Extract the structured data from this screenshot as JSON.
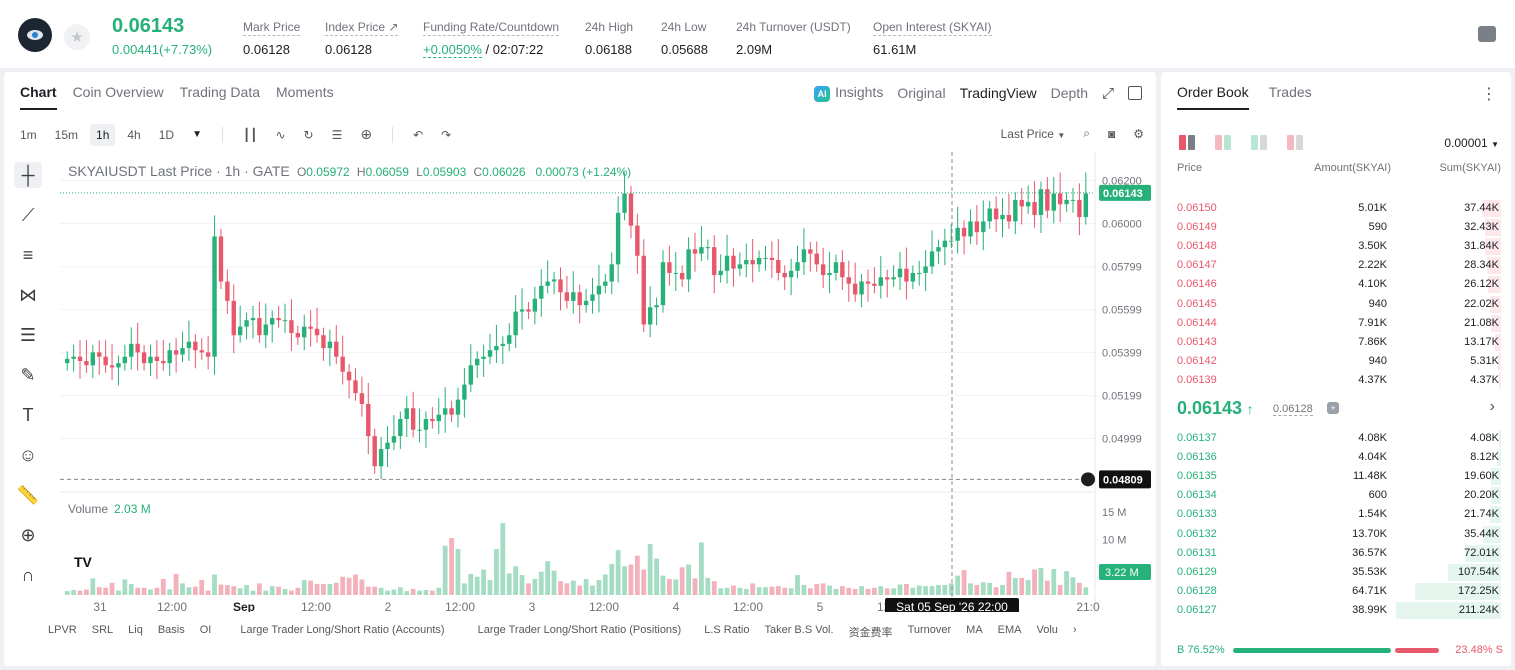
{
  "header": {
    "last_price": "0.06143",
    "change": "0.00441(+7.73%)",
    "stats": [
      {
        "label": "Mark Price",
        "value": "0.06128"
      },
      {
        "label": "Index Price ↗",
        "value": "0.06128"
      },
      {
        "label": "Funding Rate/Countdown",
        "value_green": "+0.0050%",
        "value": " / 02:07:22"
      },
      {
        "label": "24h High",
        "value": "0.06188"
      },
      {
        "label": "24h Low",
        "value": "0.05688"
      },
      {
        "label": "24h Turnover (USDT)",
        "value": "2.09M"
      },
      {
        "label": "Open Interest (SKYAI)",
        "value": "61.61M"
      }
    ]
  },
  "chart_tabs": [
    "Chart",
    "Coin Overview",
    "Trading Data",
    "Moments"
  ],
  "view_tabs": [
    "Insights",
    "Original",
    "TradingView",
    "Depth"
  ],
  "ai_badge": "AI",
  "intervals": [
    "1m",
    "15m",
    "1h",
    "4h",
    "1D"
  ],
  "price_type": "Last Price",
  "symbol_line": {
    "title": "SKYAIUSDT Last Price · 1h · GATE",
    "o": "0.05972",
    "h": "0.06059",
    "l": "0.05903",
    "c": "0.06026",
    "chg": "0.00073 (+1.24%)"
  },
  "volume": {
    "label": "Volume",
    "value": "2.03 M",
    "current": "3.22 M"
  },
  "chart_data": {
    "type": "candlestick",
    "symbol": "SKYAIUSDT",
    "interval": "1h",
    "y_ticks": [
      "0.06200",
      "0.06000",
      "0.05799",
      "0.05599",
      "0.05399",
      "0.05199",
      "0.04999"
    ],
    "vol_ticks": [
      "15 M",
      "10 M",
      "5 M"
    ],
    "x_ticks": [
      "31",
      "12:00",
      "Sep",
      "12:00",
      "2",
      "12:00",
      "3",
      "12:00",
      "4",
      "12:00",
      "5",
      "12:00",
      "21:0"
    ],
    "last_price_tag": "0.06143",
    "crosshair_price": "0.04809",
    "crosshair_time": "Sat 05 Sep '26   22:00",
    "ylim": [
      0.0475,
      0.0624
    ],
    "close": [
      0.0537,
      0.0538,
      0.0536,
      0.0534,
      0.054,
      0.0538,
      0.0534,
      0.0533,
      0.0535,
      0.0538,
      0.0544,
      0.054,
      0.0535,
      0.0538,
      0.0536,
      0.0535,
      0.0541,
      0.0539,
      0.0542,
      0.0545,
      0.0541,
      0.054,
      0.0538,
      0.0594,
      0.0573,
      0.0564,
      0.0548,
      0.0552,
      0.0555,
      0.0556,
      0.0548,
      0.0553,
      0.0556,
      0.0555,
      0.0555,
      0.0549,
      0.0547,
      0.0552,
      0.0551,
      0.0548,
      0.0542,
      0.0545,
      0.0538,
      0.0531,
      0.0527,
      0.0521,
      0.0516,
      0.0501,
      0.0487,
      0.0495,
      0.0498,
      0.0501,
      0.0509,
      0.0514,
      0.0504,
      0.0504,
      0.0509,
      0.0508,
      0.0511,
      0.0514,
      0.0511,
      0.0518,
      0.0525,
      0.0534,
      0.0537,
      0.0538,
      0.0541,
      0.0543,
      0.0544,
      0.0548,
      0.0559,
      0.056,
      0.0559,
      0.0565,
      0.0571,
      0.0573,
      0.0574,
      0.0568,
      0.0564,
      0.0568,
      0.0562,
      0.0564,
      0.0567,
      0.0571,
      0.0573,
      0.0581,
      0.0605,
      0.0614,
      0.0599,
      0.0585,
      0.0553,
      0.0561,
      0.0562,
      0.0582,
      0.0577,
      0.0577,
      0.0574,
      0.0588,
      0.0586,
      0.0589,
      0.0589,
      0.0576,
      0.0578,
      0.0585,
      0.0579,
      0.0581,
      0.0583,
      0.0581,
      0.0584,
      0.0584,
      0.0583,
      0.0577,
      0.0575,
      0.0578,
      0.0582,
      0.0588,
      0.0586,
      0.0581,
      0.0576,
      0.0577,
      0.0582,
      0.0575,
      0.0572,
      0.0567,
      0.0573,
      0.0572,
      0.0571,
      0.0575,
      0.0574,
      0.0575,
      0.0579,
      0.0573,
      0.0577,
      0.0577,
      0.058,
      0.0587,
      0.0589,
      0.0592,
      0.0592,
      0.0598,
      0.0594,
      0.0601,
      0.0596,
      0.0601,
      0.0607,
      0.0602,
      0.0604,
      0.0601,
      0.0611,
      0.0608,
      0.061,
      0.0604,
      0.0616,
      0.0606,
      0.0614,
      0.0609,
      0.0611,
      0.0611,
      0.0603,
      0.0614
    ],
    "volume_M": [
      0.7,
      0.9,
      0.8,
      1,
      3,
      1.4,
      1.3,
      2.2,
      0.8,
      2.8,
      2,
      1.3,
      1.3,
      1,
      1.3,
      2.9,
      1,
      3.8,
      2.1,
      1.4,
      1.5,
      2.7,
      0.8,
      3.7,
      1.9,
      1.8,
      1.6,
      1.2,
      1.8,
      0.8,
      2.1,
      0.8,
      1.6,
      1.5,
      1.1,
      0.8,
      1.3,
      2.7,
      2.6,
      2,
      2,
      2,
      2.2,
      3.3,
      3.1,
      3.7,
      2.8,
      1.5,
      1.5,
      1.3,
      0.8,
      1,
      1.4,
      0.7,
      1.1,
      0.8,
      0.9,
      0.8,
      1.3,
      8.9,
      10.3,
      8.3,
      2.1,
      3.8,
      3.3,
      4.6,
      2.7,
      8.3,
      13,
      3.9,
      5.2,
      3.6,
      2.1,
      2.9,
      4.2,
      6.1,
      4.4,
      2.5,
      2.1,
      2.6,
      1.7,
      2.9,
      1.7,
      2.7,
      3.7,
      5.6,
      8.1,
      5.2,
      5.5,
      7.1,
      4.6,
      9.2,
      6.6,
      3.5,
      2.9,
      2.8,
      5,
      5.5,
      3,
      9.5,
      3.1,
      2.5,
      1.2,
      1.3,
      1.7,
      1.3,
      1.1,
      2.1,
      1.4,
      1.4,
      1.5,
      1.6,
      1.3,
      1.2,
      3.6,
      1.8,
      1.2,
      2,
      2.1,
      1.7,
      1.1,
      1.6,
      1.3,
      1.1,
      1.6,
      1.1,
      1.3,
      1.6,
      1.2,
      1.2,
      1.9,
      2,
      1.3,
      1.7,
      1.6,
      1.6,
      1.8,
      1.8,
      2.1,
      3.5,
      4.5,
      2.1,
      1.8,
      2.3,
      2.2,
      1.4,
      1.8,
      4.2,
      3.1,
      3.1,
      2.7,
      4.6,
      4.9,
      2.6,
      4.7,
      1.8,
      4.3,
      3.2,
      2.2,
      1.4,
      4.1
    ]
  },
  "tool_icons": [
    "crosshair-icon",
    "trendline-icon",
    "fib-lines-icon",
    "pattern-icon",
    "multi-lines-icon",
    "brush-icon",
    "text-icon",
    "emoji-icon",
    "ruler-icon",
    "zoom-in-icon",
    "magnet-icon",
    "pencil-icon"
  ],
  "tool_text": "T",
  "indicators": [
    "LPVR",
    "SRL",
    "Liq",
    "Basis",
    "OI",
    "Large Trader Long/Short Ratio (Accounts)",
    "Large Trader Long/Short Ratio (Positions)",
    "L.S Ratio",
    "Taker B.S Vol.",
    "资金费率",
    "Turnover",
    "MA",
    "EMA",
    "Volu"
  ],
  "tv_logo": "TV",
  "orderbook": {
    "tabs": [
      "Order Book",
      "Trades"
    ],
    "precision": "0.00001",
    "headers": [
      "Price",
      "Amount(SKYAI)",
      "Sum(SKYAI)"
    ],
    "asks": [
      [
        "0.06150",
        "5.01K",
        "37.44K",
        0.177
      ],
      [
        "0.06149",
        "590",
        "32.43K",
        0.154
      ],
      [
        "0.06148",
        "3.50K",
        "31.84K",
        0.151
      ],
      [
        "0.06147",
        "2.22K",
        "28.34K",
        0.134
      ],
      [
        "0.06146",
        "4.10K",
        "26.12K",
        0.124
      ],
      [
        "0.06145",
        "940",
        "22.02K",
        0.104
      ],
      [
        "0.06144",
        "7.91K",
        "21.08K",
        0.1
      ],
      [
        "0.06143",
        "7.86K",
        "13.17K",
        0.062
      ],
      [
        "0.06142",
        "940",
        "5.31K",
        0.025
      ],
      [
        "0.06139",
        "4.37K",
        "4.37K",
        0.021
      ]
    ],
    "mid_price": "0.06143",
    "mid_arrow": "↑",
    "mark_price": "0.06128",
    "bids": [
      [
        "0.06137",
        "4.08K",
        "4.08K",
        0.019
      ],
      [
        "0.06136",
        "4.04K",
        "8.12K",
        0.038
      ],
      [
        "0.06135",
        "11.48K",
        "19.60K",
        0.093
      ],
      [
        "0.06134",
        "600",
        "20.20K",
        0.096
      ],
      [
        "0.06133",
        "1.54K",
        "21.74K",
        0.103
      ],
      [
        "0.06132",
        "13.70K",
        "35.44K",
        0.168
      ],
      [
        "0.06131",
        "36.57K",
        "72.01K",
        0.341
      ],
      [
        "0.06129",
        "35.53K",
        "107.54K",
        0.509
      ],
      [
        "0.06128",
        "64.71K",
        "172.25K",
        0.816
      ],
      [
        "0.06127",
        "38.99K",
        "211.24K",
        1.0
      ]
    ],
    "buy_ratio": "B 76.52%",
    "sell_ratio": "23.48% S",
    "buy_share": 0.7652
  }
}
